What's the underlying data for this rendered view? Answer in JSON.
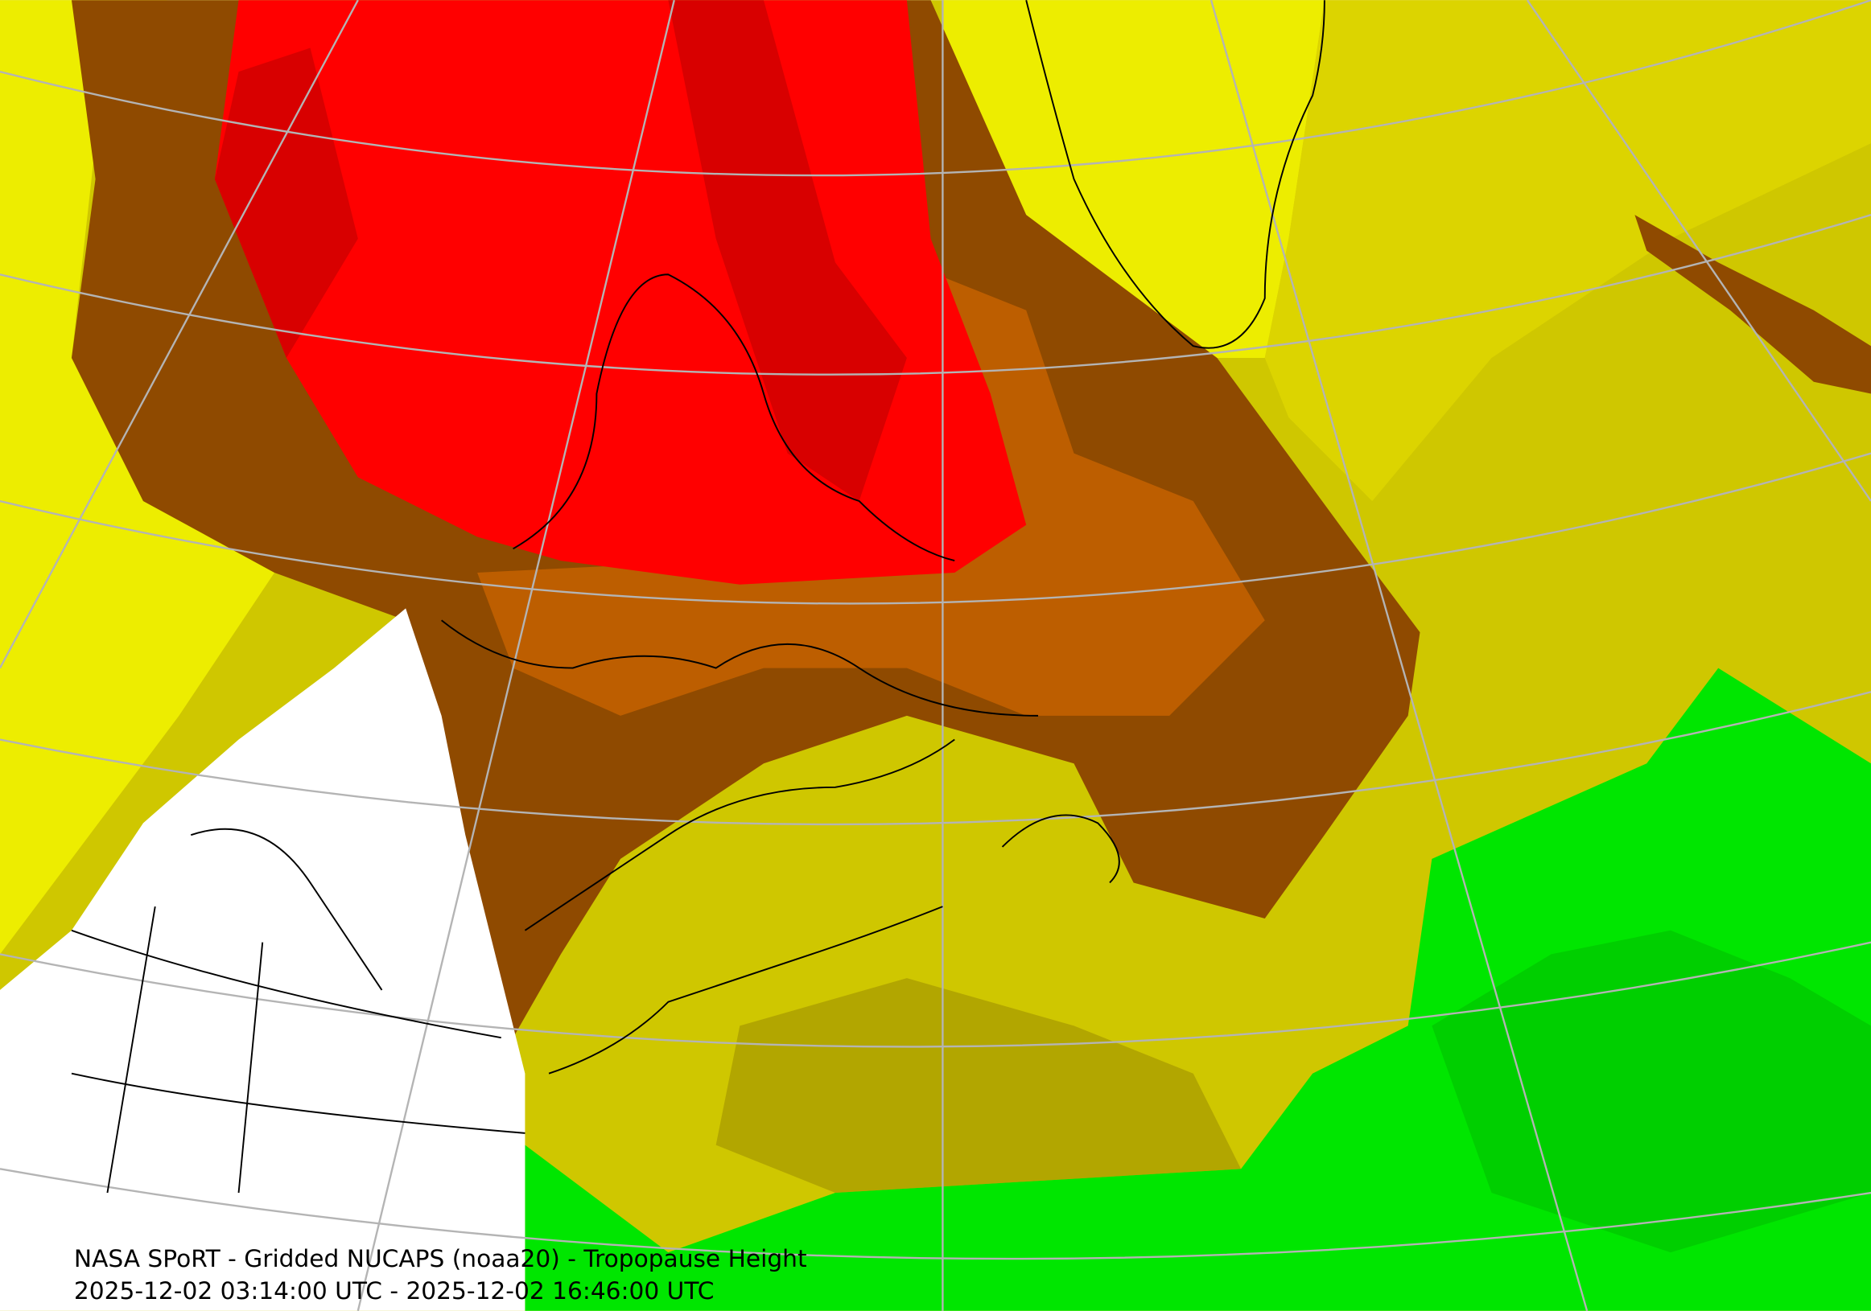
{
  "caption": {
    "title": "NASA SPoRT - Gridded NUCAPS (noaa20) - Tropopause Height",
    "time_range": "2025-12-02 03:14:00 UTC - 2025-12-02 16:46:00 UTC"
  }
}
